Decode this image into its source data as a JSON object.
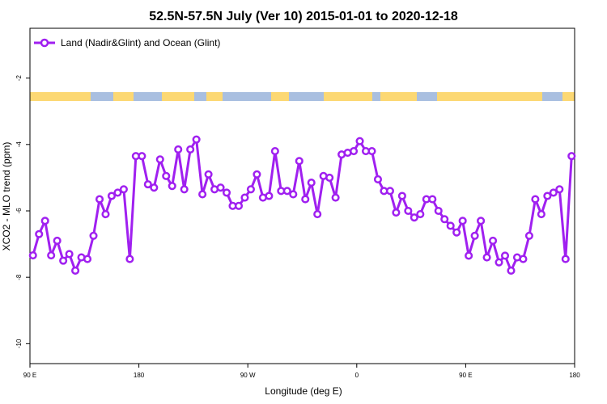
{
  "chart_data": {
    "type": "line",
    "title": "52.5N-57.5N July (Ver 10)   2015-01-01 to 2020-12-18",
    "x_label": "Longitude (deg E)",
    "y_label": "XCO2 - MLO trend (ppm)",
    "legend": "top-left",
    "xlim": [
      90,
      540
    ],
    "xticks": [
      {
        "value": 90,
        "label": "90 E"
      },
      180,
      {
        "value": 270,
        "label": "90 W"
      },
      {
        "value": 360,
        "label": "0"
      },
      {
        "value": 450,
        "label": "90 E"
      },
      {
        "value": 540,
        "label": "180"
      }
    ],
    "ylim": [
      -10.6,
      -0.5
    ],
    "yticks": [
      -2,
      -4,
      -6,
      -8,
      -10
    ],
    "x": [
      92.5,
      97.5,
      102.5,
      107.5,
      112.5,
      117.5,
      122.5,
      127.5,
      132.5,
      137.5,
      142.5,
      147.5,
      152.5,
      157.5,
      162.5,
      167.5,
      172.5,
      177.5,
      182.5,
      187.5,
      192.5,
      197.5,
      202.5,
      207.5,
      212.5,
      217.5,
      222.5,
      227.5,
      232.5,
      237.5,
      242.5,
      247.5,
      252.5,
      257.5,
      262.5,
      267.5,
      272.5,
      277.5,
      282.5,
      287.5,
      292.5,
      297.5,
      302.5,
      307.5,
      312.5,
      317.5,
      322.5,
      327.5,
      332.5,
      337.5,
      342.5,
      347.5,
      352.5,
      357.5,
      362.5,
      367.5,
      372.5,
      377.5,
      382.5,
      387.5,
      392.5,
      397.5,
      402.5,
      407.5,
      412.5,
      417.5,
      422.5,
      427.5,
      432.5,
      437.5,
      442.5,
      447.5,
      452.5,
      457.5,
      462.5,
      467.5,
      472.5,
      477.5,
      482.5,
      487.5,
      492.5,
      497.5,
      502.5,
      507.5,
      512.5,
      517.5,
      522.5,
      527.5,
      532.5,
      537.5
    ],
    "series": [
      {
        "name": "Land (Nadir&Glint) and Ocean (Glint)",
        "color": "#a020f0",
        "values": [
          -7.34,
          -6.7,
          -6.3,
          -7.34,
          -6.9,
          -7.5,
          -7.3,
          -7.8,
          -7.4,
          -7.45,
          -6.75,
          -5.65,
          -6.1,
          -5.55,
          -5.45,
          -5.35,
          -7.45,
          -4.35,
          -4.35,
          -5.2,
          -5.3,
          -4.45,
          -4.95,
          -5.25,
          -4.15,
          -5.35,
          -4.15,
          -3.85,
          -5.5,
          -4.9,
          -5.35,
          -5.3,
          -5.45,
          -5.85,
          -5.85,
          -5.6,
          -5.35,
          -4.9,
          -5.6,
          -5.55,
          -4.2,
          -5.4,
          -5.4,
          -5.5,
          -4.5,
          -5.65,
          -5.15,
          -6.1,
          -4.95,
          -5.0,
          -5.6,
          -4.3,
          -4.25,
          -4.2,
          -3.9,
          -4.2,
          -4.2,
          -5.05,
          -5.4,
          -5.4,
          -6.05,
          -5.55,
          -6.0,
          -6.2,
          -6.1,
          -5.65,
          -5.65,
          -6.0,
          -6.25,
          -6.45,
          -6.65,
          -6.3,
          -7.35,
          -6.75,
          -6.3,
          -7.4,
          -6.9,
          -7.55,
          -7.35,
          -7.8,
          -7.4,
          -7.45,
          -6.75,
          -5.65,
          -6.1,
          -5.55,
          -5.45,
          -5.35,
          -7.45,
          -4.35
        ]
      }
    ]
  }
}
